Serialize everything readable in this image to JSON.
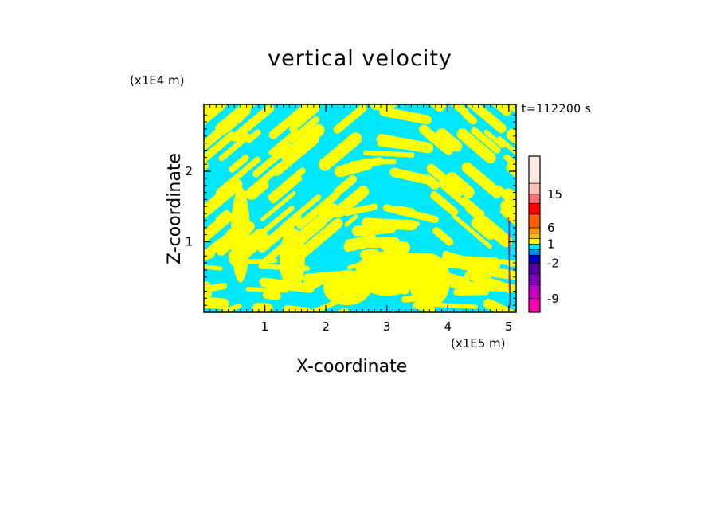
{
  "chart_data": {
    "type": "heatmap",
    "title": "vertical velocity",
    "xlabel": "X-coordinate",
    "ylabel": "Z-coordinate",
    "x_unit": "(x1E5 m)",
    "y_unit": "(x1E4 m)",
    "time_label": "t=112200 s",
    "xlim": [
      0,
      5.12
    ],
    "ylim": [
      0,
      2.95
    ],
    "x_ticks": [
      1,
      2,
      3,
      4,
      5
    ],
    "y_ticks": [
      1,
      2
    ],
    "x_tick_labels": [
      "1",
      "2",
      "3",
      "4",
      "5"
    ],
    "y_tick_labels": [
      "1",
      "2"
    ],
    "field_colors": {
      "positive": "#ffff00",
      "negative": "#00e8ff"
    },
    "colorbar": {
      "tick_labels": [
        "15",
        "6",
        "1",
        "-2",
        "-9"
      ],
      "tick_values": [
        15,
        6,
        1,
        -2,
        -9
      ],
      "bands": [
        {
          "from": 21,
          "to": 27,
          "color": "#ffe8e0"
        },
        {
          "from": 15,
          "to": 21,
          "color": "#ffc0b8"
        },
        {
          "from": 12,
          "to": 15,
          "color": "#ff7070"
        },
        {
          "from": 9,
          "to": 12,
          "color": "#ff0000"
        },
        {
          "from": 6,
          "to": 9,
          "color": "#ff6000"
        },
        {
          "from": 4,
          "to": 6,
          "color": "#ff9800"
        },
        {
          "from": 2,
          "to": 4,
          "color": "#ffc000"
        },
        {
          "from": 1,
          "to": 2,
          "color": "#ffff00"
        },
        {
          "from": 0,
          "to": 1,
          "color": "#00e8ff"
        },
        {
          "from": -1,
          "to": 0,
          "color": "#0090ff"
        },
        {
          "from": -2,
          "to": -1,
          "color": "#0000c0"
        },
        {
          "from": -4,
          "to": -2,
          "color": "#5000a0"
        },
        {
          "from": -6,
          "to": -4,
          "color": "#8000c0"
        },
        {
          "from": -9,
          "to": -6,
          "color": "#c000c0"
        },
        {
          "from": -12,
          "to": -9,
          "color": "#ff00b0"
        }
      ]
    }
  }
}
